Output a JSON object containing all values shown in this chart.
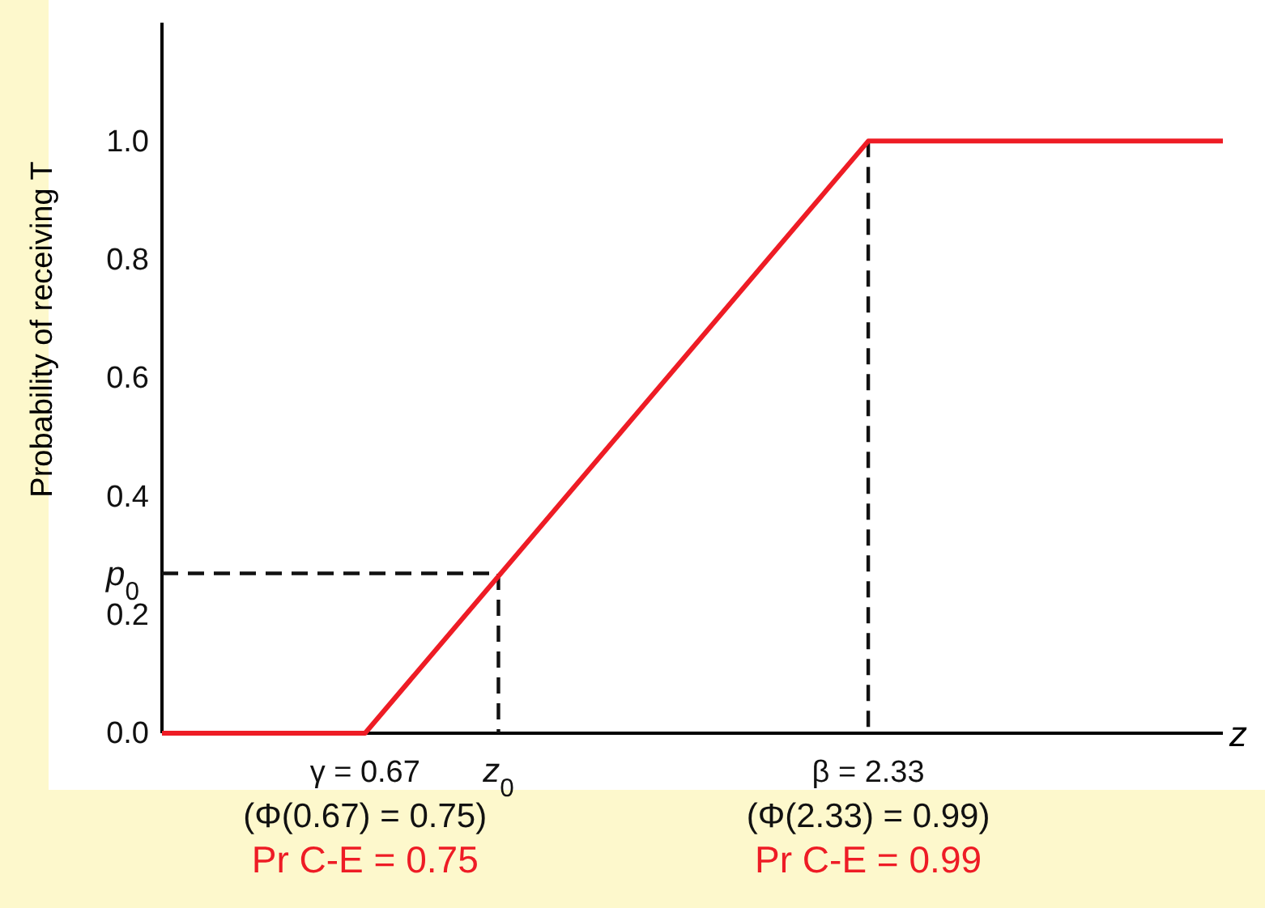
{
  "chart_data": {
    "type": "line",
    "xlabel": "z",
    "ylabel": "Probability of receiving T",
    "xlim": [
      0,
      3.5
    ],
    "ylim": [
      0,
      1.2
    ],
    "xticks": [
      {
        "value": 0.67,
        "label": "γ = 0.67"
      },
      {
        "value": 2.33,
        "label": "β = 2.33"
      }
    ],
    "yticks": [
      {
        "value": 0,
        "label": "0.0"
      },
      {
        "value": 0.2,
        "label": "0.2"
      },
      {
        "value": 0.4,
        "label": "0.4"
      },
      {
        "value": 0.6,
        "label": "0.6"
      },
      {
        "value": 0.8,
        "label": "0.8"
      },
      {
        "value": 1,
        "label": "1.0"
      }
    ],
    "series": [
      {
        "color": "#111111",
        "x": [
          0,
          1.11,
          1.11
        ],
        "values": [
          0.27,
          0.27,
          0
        ],
        "line_style": "dashed"
      },
      {
        "color": "#111111",
        "x": [
          2.33,
          2.33,
          2.33
        ],
        "values": [
          1,
          0.5,
          0
        ],
        "line_style": "dashed"
      },
      {
        "color": "#ee1c25",
        "x": [
          0,
          0.67,
          2.33,
          3.5
        ],
        "values": [
          0,
          0,
          1,
          1
        ],
        "line_style": "solid"
      }
    ],
    "annotations": [
      {
        "text": "z$_{0}$",
        "x": 1.11,
        "y": 0
      },
      {
        "text": "p$_{0}$",
        "x": 0,
        "y": 0.27
      },
      "(Φ(0.67) = 0.75)",
      "Pr C-E = 0.75",
      "(Φ(2.33) = 0.99)",
      "Pr C-E = 0.99"
    ],
    "grid": false,
    "marker": "none"
  }
}
